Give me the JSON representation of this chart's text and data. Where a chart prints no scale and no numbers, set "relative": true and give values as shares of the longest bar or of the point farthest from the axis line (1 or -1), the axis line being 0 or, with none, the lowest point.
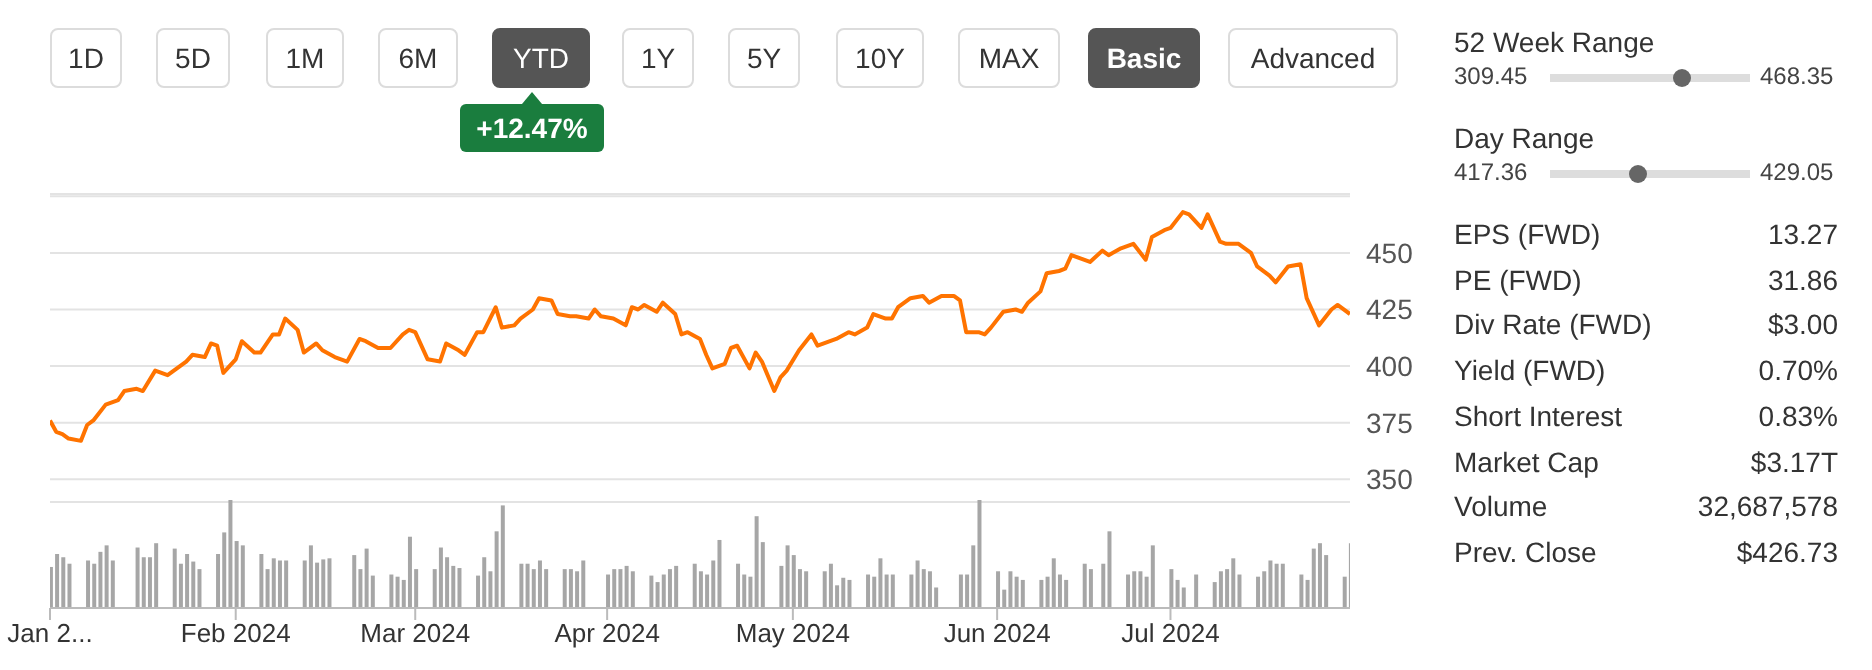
{
  "chart_data": [
    {
      "type": "line",
      "annotations": [
        "1D",
        "5D",
        "1M",
        "6M",
        "YTD",
        "1Y",
        "5Y",
        "10Y",
        "MAX",
        "Basic",
        "Advanced",
        "+12.47%"
      ],
      "x": [
        "2024-01-02",
        "2024-01-03",
        "2024-01-04",
        "2024-01-05",
        "2024-01-07",
        "2024-01-08",
        "2024-01-09",
        "2024-01-11",
        "2024-01-13",
        "2024-01-14",
        "2024-01-16",
        "2024-01-17",
        "2024-01-19",
        "2024-01-21",
        "2024-01-22",
        "2024-01-24",
        "2024-01-25",
        "2024-01-27",
        "2024-01-28",
        "2024-01-29",
        "2024-01-30",
        "2024-02-01",
        "2024-02-02",
        "2024-02-04",
        "2024-02-05",
        "2024-02-07",
        "2024-02-08",
        "2024-02-09",
        "2024-02-11",
        "2024-02-12",
        "2024-02-14",
        "2024-02-15",
        "2024-02-17",
        "2024-02-18",
        "2024-02-19",
        "2024-02-21",
        "2024-02-22",
        "2024-02-24",
        "2024-02-26",
        "2024-02-28",
        "2024-02-29",
        "2024-03-01",
        "2024-03-03",
        "2024-03-05",
        "2024-03-06",
        "2024-03-08",
        "2024-03-09",
        "2024-03-11",
        "2024-03-12",
        "2024-03-14",
        "2024-03-15",
        "2024-03-17",
        "2024-03-18",
        "2024-03-20",
        "2024-03-21",
        "2024-03-23",
        "2024-03-24",
        "2024-03-26",
        "2024-03-27",
        "2024-03-29",
        "2024-03-30",
        "2024-03-31",
        "2024-04-02",
        "2024-04-04",
        "2024-04-05",
        "2024-04-06",
        "2024-04-07",
        "2024-04-09",
        "2024-04-10",
        "2024-04-12",
        "2024-04-13",
        "2024-04-14",
        "2024-04-16",
        "2024-04-17",
        "2024-04-18",
        "2024-04-20",
        "2024-04-21",
        "2024-04-22",
        "2024-04-24",
        "2024-04-25",
        "2024-04-26",
        "2024-04-28",
        "2024-04-29",
        "2024-04-30",
        "2024-05-02",
        "2024-05-04",
        "2024-05-05",
        "2024-05-07",
        "2024-05-08",
        "2024-05-10",
        "2024-05-11",
        "2024-05-13",
        "2024-05-14",
        "2024-05-16",
        "2024-05-17",
        "2024-05-18",
        "2024-05-20",
        "2024-05-22",
        "2024-05-23",
        "2024-05-25",
        "2024-05-27",
        "2024-05-28",
        "2024-05-29",
        "2024-05-31",
        "2024-06-01",
        "2024-06-02",
        "2024-06-04",
        "2024-06-06",
        "2024-06-07",
        "2024-06-08",
        "2024-06-10",
        "2024-06-11",
        "2024-06-13",
        "2024-06-14",
        "2024-06-15",
        "2024-06-17",
        "2024-06-18",
        "2024-06-20",
        "2024-06-21",
        "2024-06-23",
        "2024-06-24",
        "2024-06-25",
        "2024-06-27",
        "2024-06-28",
        "2024-06-30",
        "2024-07-01",
        "2024-07-03",
        "2024-07-04",
        "2024-07-06",
        "2024-07-07",
        "2024-07-09",
        "2024-07-10",
        "2024-07-12",
        "2024-07-14",
        "2024-07-15",
        "2024-07-17",
        "2024-07-18",
        "2024-07-20",
        "2024-07-22",
        "2024-07-23",
        "2024-07-25",
        "2024-07-27",
        "2024-07-28",
        "2024-07-30"
      ],
      "values": [
        376,
        371,
        370,
        368,
        367,
        374,
        376,
        383,
        385,
        389,
        390,
        389,
        398,
        396,
        398,
        402,
        405,
        404,
        410,
        409,
        397,
        403,
        411,
        406,
        406,
        414,
        414,
        421,
        416,
        406,
        410,
        407,
        404,
        403,
        402,
        412,
        411,
        408,
        408,
        414,
        416,
        415,
        403,
        402,
        410,
        407,
        405,
        415,
        415,
        426,
        417,
        418,
        421,
        425,
        430,
        429,
        423,
        422,
        422,
        421,
        425,
        422,
        421,
        418,
        426,
        425,
        427,
        424,
        428,
        423,
        414,
        415,
        412,
        405,
        399,
        401,
        408,
        409,
        399,
        406,
        402,
        389,
        395,
        398,
        407,
        414,
        409,
        411,
        412,
        415,
        414,
        417,
        423,
        421,
        421,
        426,
        430,
        431,
        428,
        431,
        431,
        429,
        415,
        415,
        414,
        417,
        424,
        425,
        424,
        428,
        433,
        441,
        442,
        443,
        449,
        447,
        446,
        451,
        449,
        452,
        453,
        454,
        447,
        457,
        460,
        461,
        468,
        467,
        461,
        467,
        455,
        454,
        454,
        450,
        444,
        440,
        437,
        444,
        445,
        430,
        418,
        425,
        427,
        423
      ],
      "color": "#ff7300",
      "xlim": [
        "2024-01-02",
        "2024-07-30"
      ],
      "ylim": [
        340,
        476
      ],
      "yticks": [
        350,
        375,
        400,
        425,
        450,
        {
          "value": 475,
          "label": null
        }
      ],
      "grid": "y",
      "tick_labels": "y",
      "marker": "none",
      "line_style": "solid"
    },
    {
      "type": "bar",
      "relative": true,
      "color": "#a6a6a6",
      "tick_labels": "x",
      "x": [
        "2024-01-02",
        "2024-01-03",
        "2024-01-04",
        "2024-01-05",
        "2024-01-08",
        "2024-01-09",
        "2024-01-10",
        "2024-01-11",
        "2024-01-12",
        "2024-01-16",
        "2024-01-17",
        "2024-01-18",
        "2024-01-19",
        "2024-01-22",
        "2024-01-23",
        "2024-01-24",
        "2024-01-25",
        "2024-01-26",
        "2024-01-29",
        "2024-01-30",
        "2024-01-31",
        "2024-02-01",
        "2024-02-02",
        "2024-02-05",
        "2024-02-06",
        "2024-02-07",
        "2024-02-08",
        "2024-02-09",
        "2024-02-12",
        "2024-02-13",
        "2024-02-14",
        "2024-02-15",
        "2024-02-16",
        "2024-02-20",
        "2024-02-21",
        "2024-02-22",
        "2024-02-23",
        "2024-02-26",
        "2024-02-27",
        "2024-02-28",
        "2024-02-29",
        "2024-03-01",
        "2024-03-04",
        "2024-03-05",
        "2024-03-06",
        "2024-03-07",
        "2024-03-08",
        "2024-03-11",
        "2024-03-12",
        "2024-03-13",
        "2024-03-14",
        "2024-03-15",
        "2024-03-18",
        "2024-03-19",
        "2024-03-20",
        "2024-03-21",
        "2024-03-22",
        "2024-03-25",
        "2024-03-26",
        "2024-03-27",
        "2024-03-28",
        "2024-04-01",
        "2024-04-02",
        "2024-04-03",
        "2024-04-04",
        "2024-04-05",
        "2024-04-08",
        "2024-04-09",
        "2024-04-10",
        "2024-04-11",
        "2024-04-12",
        "2024-04-15",
        "2024-04-16",
        "2024-04-17",
        "2024-04-18",
        "2024-04-19",
        "2024-04-22",
        "2024-04-23",
        "2024-04-24",
        "2024-04-25",
        "2024-04-26",
        "2024-04-29",
        "2024-04-30",
        "2024-05-01",
        "2024-05-02",
        "2024-05-03",
        "2024-05-06",
        "2024-05-07",
        "2024-05-08",
        "2024-05-09",
        "2024-05-10",
        "2024-05-13",
        "2024-05-14",
        "2024-05-15",
        "2024-05-16",
        "2024-05-17",
        "2024-05-20",
        "2024-05-21",
        "2024-05-22",
        "2024-05-23",
        "2024-05-24",
        "2024-05-28",
        "2024-05-29",
        "2024-05-30",
        "2024-05-31",
        "2024-06-03",
        "2024-06-04",
        "2024-06-05",
        "2024-06-06",
        "2024-06-07",
        "2024-06-10",
        "2024-06-11",
        "2024-06-12",
        "2024-06-13",
        "2024-06-14",
        "2024-06-17",
        "2024-06-18",
        "2024-06-20",
        "2024-06-21",
        "2024-06-24",
        "2024-06-25",
        "2024-06-26",
        "2024-06-27",
        "2024-06-28",
        "2024-07-01",
        "2024-07-02",
        "2024-07-03",
        "2024-07-05",
        "2024-07-08",
        "2024-07-09",
        "2024-07-10",
        "2024-07-11",
        "2024-07-12",
        "2024-07-15",
        "2024-07-16",
        "2024-07-17",
        "2024-07-18",
        "2024-07-19",
        "2024-07-22",
        "2024-07-23",
        "2024-07-24",
        "2024-07-25",
        "2024-07-26",
        "2024-07-29",
        "2024-07-30"
      ],
      "values": [
        0.38,
        0.5,
        0.47,
        0.41,
        0.44,
        0.41,
        0.52,
        0.58,
        0.44,
        0.56,
        0.47,
        0.47,
        0.6,
        0.55,
        0.41,
        0.5,
        0.43,
        0.36,
        0.5,
        0.7,
        1,
        0.62,
        0.58,
        0.5,
        0.36,
        0.46,
        0.44,
        0.44,
        0.44,
        0.58,
        0.42,
        0.45,
        0.46,
        0.49,
        0.36,
        0.55,
        0.3,
        0.31,
        0.29,
        0.26,
        0.66,
        0.36,
        0.36,
        0.56,
        0.47,
        0.39,
        0.37,
        0.3,
        0.47,
        0.34,
        0.71,
        0.95,
        0.41,
        0.41,
        0.36,
        0.44,
        0.36,
        0.36,
        0.36,
        0.34,
        0.44,
        0.31,
        0.36,
        0.36,
        0.39,
        0.34,
        0.3,
        0.24,
        0.31,
        0.36,
        0.39,
        0.41,
        0.34,
        0.31,
        0.44,
        0.63,
        0.41,
        0.31,
        0.29,
        0.85,
        0.61,
        0.39,
        0.58,
        0.49,
        0.36,
        0.34,
        0.34,
        0.41,
        0.21,
        0.28,
        0.26,
        0.31,
        0.29,
        0.46,
        0.31,
        0.31,
        0.31,
        0.44,
        0.36,
        0.34,
        0.19,
        0.31,
        0.31,
        0.58,
        1,
        0.34,
        0.17,
        0.34,
        0.29,
        0.26,
        0.26,
        0.29,
        0.46,
        0.31,
        0.26,
        0.41,
        0.36,
        0.41,
        0.71,
        0.31,
        0.34,
        0.34,
        0.29,
        0.58,
        0.36,
        0.26,
        0.19,
        0.31,
        0.24,
        0.34,
        0.36,
        0.46,
        0.31,
        0.29,
        0.34,
        0.44,
        0.41,
        0.41,
        0.31,
        0.26,
        0.55,
        0.6,
        0.49,
        0.29,
        0.6
      ],
      "xlim": [
        "2024-01-02",
        "2024-07-30"
      ],
      "xticks": [
        {
          "value": "2024-01-02",
          "label": "Jan 2..."
        },
        {
          "value": "2024-02-01",
          "label": "Feb 2024"
        },
        {
          "value": "2024-03-01",
          "label": "Mar 2024"
        },
        {
          "value": "2024-04-01",
          "label": "Apr 2024"
        },
        {
          "value": "2024-05-01",
          "label": "May 2024"
        },
        {
          "value": "2024-06-03",
          "label": "Jun 2024"
        },
        {
          "value": "2024-07-01",
          "label": "Jul 2024"
        }
      ]
    },
    {
      "type": "other",
      "annotations": [
        "52 Week Range",
        "309.45",
        "468.35",
        "Day Range",
        "417.36",
        "429.05",
        "EPS (FWD)",
        "13.27",
        "PE (FWD)",
        "31.86",
        "Div Rate (FWD)",
        "$3.00",
        "Yield (FWD)",
        "0.70%",
        "Short Interest",
        "0.83%",
        "Market Cap",
        "$3.17T",
        "Volume",
        "32,687,578",
        "Prev. Close",
        "$426.73"
      ]
    }
  ]
}
